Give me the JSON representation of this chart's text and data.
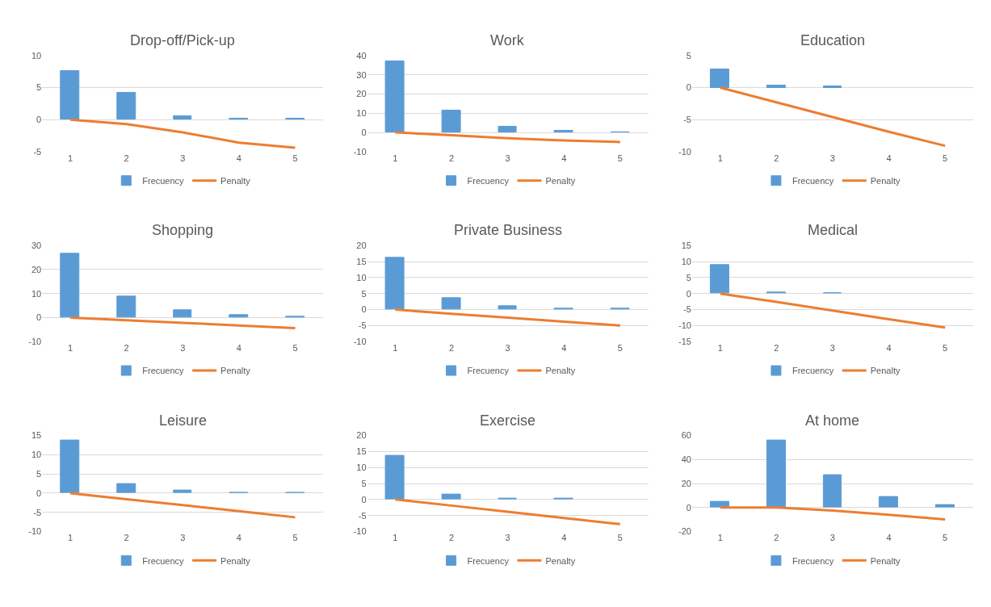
{
  "chart_data": [
    {
      "type": "bar",
      "title": "Drop-off/Pick-up",
      "categories": [
        "1",
        "2",
        "3",
        "4",
        "5"
      ],
      "ylim": [
        -5,
        10
      ],
      "yticks": [
        -5,
        0,
        5,
        10
      ],
      "grid": "y",
      "legend": "bottom",
      "series": [
        {
          "name": "Frecuency",
          "color": "#5b9bd5",
          "values": [
            7.6,
            4.2,
            0.5,
            0.2,
            0.1
          ]
        },
        {
          "name": "Penalty",
          "type": "line",
          "color": "#ed7d31",
          "values": [
            0,
            -0.7,
            -2,
            -3.6,
            -4.4
          ]
        }
      ]
    },
    {
      "type": "bar",
      "title": "Work",
      "categories": [
        "1",
        "2",
        "3",
        "4",
        "5"
      ],
      "ylim": [
        -10,
        40
      ],
      "yticks": [
        -10,
        0,
        10,
        20,
        30,
        40
      ],
      "grid": "y",
      "legend": "bottom",
      "series": [
        {
          "name": "Frecuency",
          "color": "#5b9bd5",
          "values": [
            37,
            11.5,
            3,
            1,
            0.2
          ]
        },
        {
          "name": "Penalty",
          "type": "line",
          "color": "#ed7d31",
          "values": [
            0,
            -1.5,
            -3,
            -4.2,
            -5
          ]
        }
      ]
    },
    {
      "type": "bar",
      "title": "Education",
      "categories": [
        "1",
        "2",
        "3",
        "4",
        "5"
      ],
      "ylim": [
        -10,
        5
      ],
      "yticks": [
        -10,
        -5,
        0,
        5
      ],
      "grid": "y",
      "legend": "bottom",
      "series": [
        {
          "name": "Frecuency",
          "color": "#5b9bd5",
          "values": [
            2.9,
            0.3,
            0.2,
            null,
            null
          ]
        },
        {
          "name": "Penalty",
          "type": "line",
          "color": "#ed7d31",
          "values": [
            0,
            -2.3,
            -4.6,
            -6.9,
            -9.1
          ]
        }
      ]
    },
    {
      "type": "bar",
      "title": "Shopping",
      "categories": [
        "1",
        "2",
        "3",
        "4",
        "5"
      ],
      "ylim": [
        -10,
        30
      ],
      "yticks": [
        -10,
        0,
        10,
        20,
        30
      ],
      "grid": "y",
      "legend": "bottom",
      "series": [
        {
          "name": "Frecuency",
          "color": "#5b9bd5",
          "values": [
            26.5,
            8.7,
            3,
            1.2,
            0.5
          ]
        },
        {
          "name": "Penalty",
          "type": "line",
          "color": "#ed7d31",
          "values": [
            0,
            -1.1,
            -2.2,
            -3.3,
            -4.4
          ]
        }
      ]
    },
    {
      "type": "bar",
      "title": "Private Business",
      "categories": [
        "1",
        "2",
        "3",
        "4",
        "5"
      ],
      "ylim": [
        -10,
        20
      ],
      "yticks": [
        -10,
        -5,
        0,
        5,
        10,
        15,
        20
      ],
      "grid": "y",
      "legend": "bottom",
      "series": [
        {
          "name": "Frecuency",
          "color": "#5b9bd5",
          "values": [
            16.3,
            3.5,
            1,
            0.2,
            0.2
          ]
        },
        {
          "name": "Penalty",
          "type": "line",
          "color": "#ed7d31",
          "values": [
            0,
            -1.3,
            -2.5,
            -3.8,
            -5
          ]
        }
      ]
    },
    {
      "type": "bar",
      "title": "Medical",
      "categories": [
        "1",
        "2",
        "3",
        "4",
        "5"
      ],
      "ylim": [
        -15,
        15
      ],
      "yticks": [
        -15,
        -10,
        -5,
        0,
        5,
        10,
        15
      ],
      "grid": "y",
      "legend": "bottom",
      "series": [
        {
          "name": "Frecuency",
          "color": "#5b9bd5",
          "values": [
            9,
            0.4,
            0.1,
            null,
            null
          ]
        },
        {
          "name": "Penalty",
          "type": "line",
          "color": "#ed7d31",
          "values": [
            0,
            -2.6,
            -5.3,
            -8,
            -10.6
          ]
        }
      ]
    },
    {
      "type": "bar",
      "title": "Leisure",
      "categories": [
        "1",
        "2",
        "3",
        "4",
        "5"
      ],
      "ylim": [
        -10,
        15
      ],
      "yticks": [
        -10,
        -5,
        0,
        5,
        10,
        15
      ],
      "grid": "y",
      "legend": "bottom",
      "series": [
        {
          "name": "Frecuency",
          "color": "#5b9bd5",
          "values": [
            13.7,
            2.4,
            0.6,
            0.1,
            0.1
          ]
        },
        {
          "name": "Penalty",
          "type": "line",
          "color": "#ed7d31",
          "values": [
            0,
            -1.6,
            -3.1,
            -4.7,
            -6.3
          ]
        }
      ]
    },
    {
      "type": "bar",
      "title": "Exercise",
      "categories": [
        "1",
        "2",
        "3",
        "4",
        "5"
      ],
      "ylim": [
        -10,
        20
      ],
      "yticks": [
        -10,
        -5,
        0,
        5,
        10,
        15,
        20
      ],
      "grid": "y",
      "legend": "bottom",
      "series": [
        {
          "name": "Frecuency",
          "color": "#5b9bd5",
          "values": [
            13.8,
            1.6,
            0.2,
            0.2,
            null
          ]
        },
        {
          "name": "Penalty",
          "type": "line",
          "color": "#ed7d31",
          "values": [
            0,
            -1.9,
            -3.8,
            -5.8,
            -7.7
          ]
        }
      ]
    },
    {
      "type": "bar",
      "title": "At home",
      "categories": [
        "1",
        "2",
        "3",
        "4",
        "5"
      ],
      "ylim": [
        -20,
        60
      ],
      "yticks": [
        -20,
        0,
        20,
        40,
        60
      ],
      "grid": "y",
      "legend": "bottom",
      "series": [
        {
          "name": "Frecuency",
          "color": "#5b9bd5",
          "values": [
            5,
            56,
            27,
            8.7,
            2.3
          ]
        },
        {
          "name": "Penalty",
          "type": "line",
          "color": "#ed7d31",
          "values": [
            0,
            0,
            -2.5,
            -6,
            -10
          ]
        }
      ]
    }
  ]
}
